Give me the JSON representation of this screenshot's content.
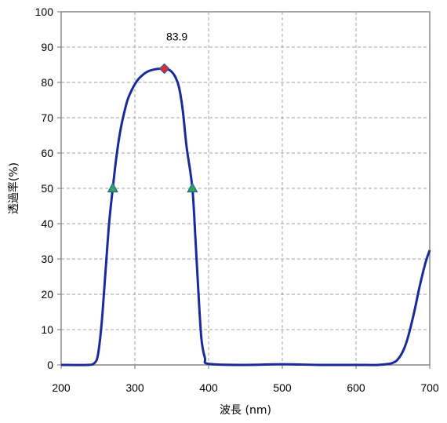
{
  "chart_data": {
    "type": "line",
    "xlabel": "波長 (nm)",
    "ylabel": "透過率(%)",
    "xlim": [
      200,
      700
    ],
    "ylim": [
      0,
      100
    ],
    "x_ticks": [
      200,
      300,
      400,
      500,
      600,
      700
    ],
    "y_ticks": [
      0,
      10,
      20,
      30,
      40,
      50,
      60,
      70,
      80,
      90,
      100
    ],
    "x_tick_labels": [
      "200",
      "300",
      "400",
      "500",
      "600",
      "700"
    ],
    "y_tick_labels": [
      "0",
      "10",
      "20",
      "30",
      "40",
      "50",
      "60",
      "70",
      "80",
      "90",
      "100"
    ],
    "grid": true,
    "line_color": "#1a2a9c",
    "series": [
      {
        "x": [
          200,
          235,
          245,
          250,
          255,
          260,
          265,
          270,
          275,
          280,
          285,
          290,
          295,
          300,
          305,
          310,
          315,
          320,
          325,
          330,
          335,
          340,
          345,
          350,
          355,
          360,
          365,
          370,
          375,
          378,
          380,
          385,
          390,
          395,
          400,
          450,
          500,
          550,
          600,
          630,
          645,
          650,
          655,
          660,
          665,
          670,
          675,
          680,
          685,
          690,
          695,
          700
        ],
        "y": [
          0,
          0,
          0.5,
          3,
          12,
          26,
          40,
          50,
          59,
          66,
          71,
          75,
          77.5,
          79.5,
          81,
          82,
          82.8,
          83.3,
          83.6,
          83.8,
          83.9,
          83.9,
          83.7,
          83,
          81.5,
          78.5,
          72,
          62,
          55,
          50,
          44,
          25,
          8,
          2,
          0.3,
          0,
          0.2,
          0,
          0,
          0,
          0.3,
          0.6,
          1.2,
          2.5,
          4.5,
          7.5,
          11.5,
          16,
          21,
          25.5,
          29.5,
          32.5
        ]
      }
    ],
    "markers": [
      {
        "x": 270,
        "y": 50,
        "shape": "triangle",
        "color": "#2fa84f"
      },
      {
        "x": 378,
        "y": 50,
        "shape": "triangle",
        "color": "#2fa84f"
      },
      {
        "x": 340,
        "y": 83.9,
        "shape": "diamond",
        "color": "#e8282c"
      }
    ],
    "annotations": [
      {
        "text": "83.9",
        "x": 340,
        "y": 83.9
      }
    ]
  }
}
